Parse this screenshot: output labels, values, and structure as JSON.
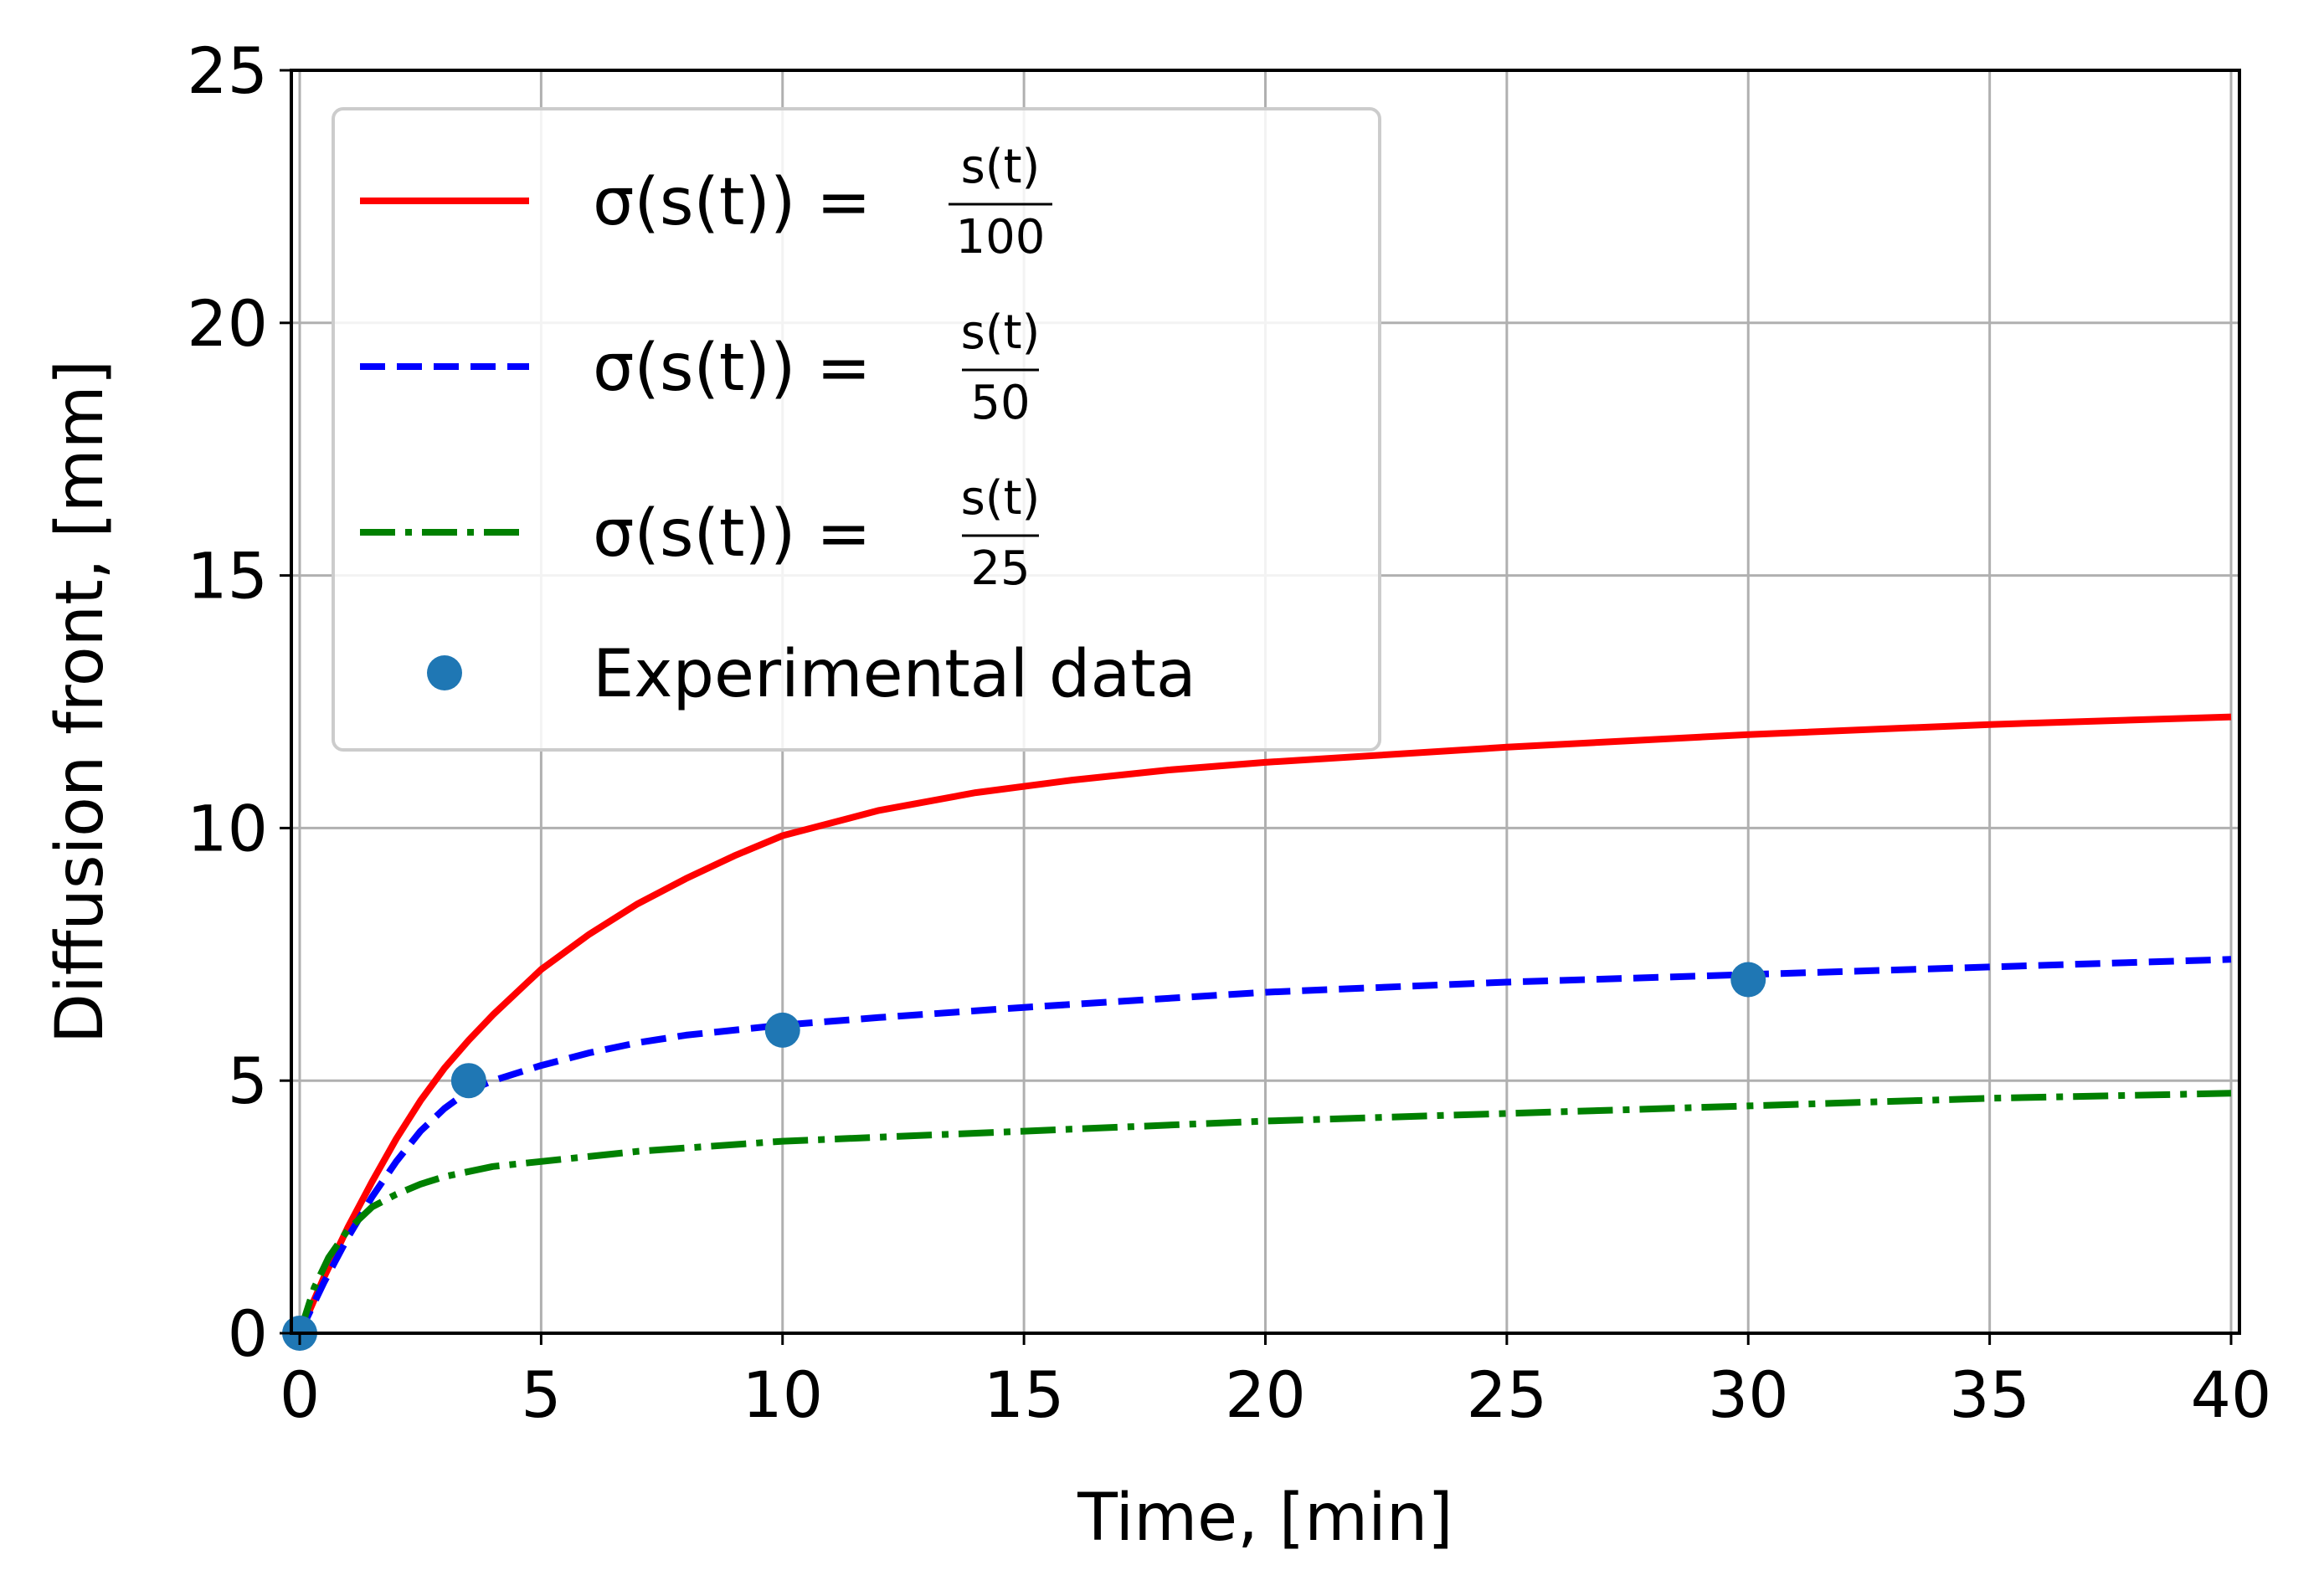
{
  "chart_data": {
    "type": "line",
    "title": "",
    "xlabel": "Time, [min]",
    "ylabel": "Diffusion front, [mm]",
    "xlim": [
      0,
      40
    ],
    "ylim": [
      0,
      25
    ],
    "xticks": [
      0,
      5,
      10,
      15,
      20,
      25,
      30,
      35,
      40
    ],
    "yticks": [
      0,
      5,
      10,
      15,
      20,
      25
    ],
    "xtick_labels": [
      "0",
      "5",
      "10",
      "15",
      "20",
      "25",
      "30",
      "35",
      "40"
    ],
    "ytick_labels": [
      "0",
      "5",
      "10",
      "15",
      "20",
      "25"
    ],
    "grid": true,
    "legend_position": "top-left",
    "series": [
      {
        "name": "σ(s(t)) = s(t)/100",
        "legend_lhs": "σ(s(t)) =",
        "legend_num": "s(t)",
        "legend_den": "100",
        "style": "solid",
        "color": "#ff0000",
        "x": [
          0,
          0.5,
          1,
          1.5,
          2,
          2.5,
          3,
          3.5,
          4,
          5,
          6,
          7,
          8,
          9,
          10,
          12,
          14,
          16,
          18,
          20,
          25,
          30,
          35,
          40
        ],
        "y": [
          0,
          1.1,
          2.1,
          3.0,
          3.85,
          4.6,
          5.25,
          5.8,
          6.3,
          7.2,
          7.9,
          8.5,
          9.0,
          9.45,
          9.85,
          10.35,
          10.7,
          10.95,
          11.15,
          11.3,
          11.6,
          11.85,
          12.05,
          12.2
        ]
      },
      {
        "name": "σ(s(t)) = s(t)/50",
        "legend_lhs": "σ(s(t)) =",
        "legend_num": "s(t)",
        "legend_den": "50",
        "style": "dashed",
        "color": "#0000ff",
        "x": [
          0,
          0.5,
          1,
          1.5,
          2,
          2.5,
          3,
          3.5,
          4,
          5,
          6,
          7,
          8,
          10,
          12,
          15,
          20,
          25,
          30,
          35,
          40
        ],
        "y": [
          0,
          1.0,
          1.9,
          2.7,
          3.4,
          4.0,
          4.45,
          4.8,
          5.0,
          5.3,
          5.55,
          5.75,
          5.9,
          6.1,
          6.25,
          6.45,
          6.75,
          6.95,
          7.1,
          7.25,
          7.4
        ]
      },
      {
        "name": "σ(s(t)) = s(t)/25",
        "legend_lhs": "σ(s(t)) =",
        "legend_num": "s(t)",
        "legend_den": "25",
        "style": "dashdot",
        "color": "#008000",
        "x": [
          0,
          0.3,
          0.6,
          1,
          1.5,
          2,
          2.5,
          3,
          4,
          5,
          7,
          10,
          15,
          20,
          25,
          30,
          35,
          40
        ],
        "y": [
          0,
          0.9,
          1.5,
          2.05,
          2.5,
          2.75,
          2.95,
          3.1,
          3.3,
          3.4,
          3.6,
          3.8,
          4.0,
          4.2,
          4.35,
          4.5,
          4.65,
          4.75
        ]
      }
    ],
    "scatter": {
      "name": "Experimental data",
      "color": "#1f77b4",
      "x": [
        0,
        3.5,
        10,
        30
      ],
      "y": [
        0,
        5,
        6,
        7
      ]
    }
  }
}
